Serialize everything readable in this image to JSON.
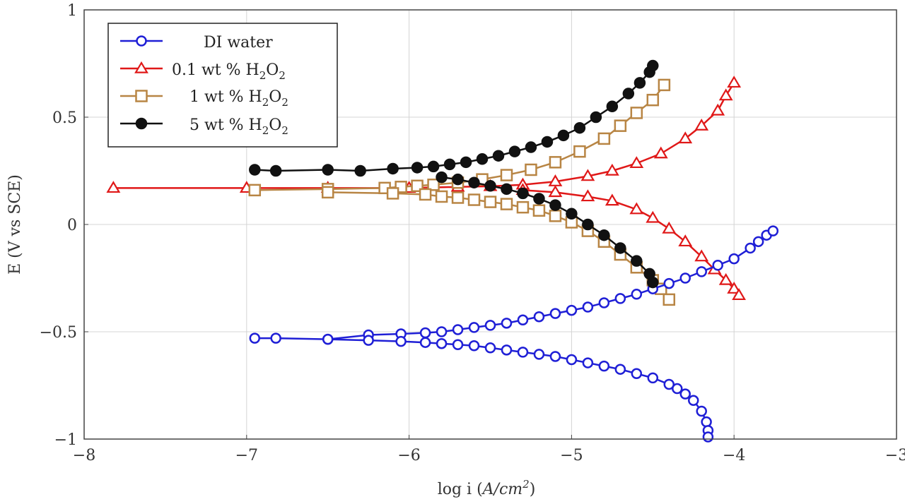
{
  "chart_data": {
    "type": "scatter",
    "xlabel_main": "log i (",
    "xlabel_unit": "A/cm",
    "xlabel_exp": "2",
    "xlabel_close": ")",
    "ylabel": "E (V vs SCE)",
    "xlim": [
      -8,
      -3
    ],
    "ylim": [
      -1,
      1
    ],
    "xticks": [
      -8,
      -7,
      -6,
      -5,
      -4,
      -3
    ],
    "yticks": [
      -1,
      -0.5,
      0,
      0.5,
      1
    ],
    "xtick_labels": [
      "−8",
      "−7",
      "−6",
      "−5",
      "−4",
      "−3"
    ],
    "ytick_labels": [
      "−1",
      "−0.5",
      "0",
      "0.5",
      "1"
    ],
    "grid": true,
    "legend_position": "top-left",
    "series": [
      {
        "name": "DI water",
        "legend_main": "DI water",
        "color": "#1f1fd6",
        "marker": "circle",
        "x": [
          -6.95,
          -6.82,
          -6.5,
          -6.25,
          -6.05,
          -5.9,
          -5.8,
          -5.7,
          -5.6,
          -5.5,
          -5.4,
          -5.3,
          -5.2,
          -5.1,
          -5.0,
          -4.9,
          -4.8,
          -4.7,
          -4.6,
          -4.5,
          -4.4,
          -4.3,
          -4.2,
          -4.1,
          -4.0,
          -3.9,
          -3.85,
          -3.8,
          -3.76,
          -6.5,
          -6.25,
          -6.05,
          -5.9,
          -5.8,
          -5.7,
          -5.6,
          -5.5,
          -5.4,
          -5.3,
          -5.2,
          -5.1,
          -5.0,
          -4.9,
          -4.8,
          -4.7,
          -4.6,
          -4.5,
          -4.4,
          -4.35,
          -4.3,
          -4.25,
          -4.2,
          -4.17,
          -4.16,
          -4.16
        ],
        "y": [
          -0.53,
          -0.53,
          -0.535,
          -0.515,
          -0.51,
          -0.505,
          -0.5,
          -0.49,
          -0.48,
          -0.47,
          -0.46,
          -0.445,
          -0.43,
          -0.415,
          -0.4,
          -0.385,
          -0.365,
          -0.345,
          -0.325,
          -0.3,
          -0.275,
          -0.25,
          -0.22,
          -0.19,
          -0.16,
          -0.11,
          -0.08,
          -0.05,
          -0.03,
          -0.535,
          -0.54,
          -0.545,
          -0.55,
          -0.555,
          -0.56,
          -0.565,
          -0.575,
          -0.585,
          -0.595,
          -0.605,
          -0.615,
          -0.63,
          -0.645,
          -0.66,
          -0.675,
          -0.695,
          -0.715,
          -0.745,
          -0.765,
          -0.79,
          -0.82,
          -0.87,
          -0.92,
          -0.96,
          -0.99
        ]
      },
      {
        "name": "0.1 wt % H2O2",
        "legend_main": "0.1 wt % H",
        "legend_sub1": "2",
        "legend_mid": "O",
        "legend_sub2": "2",
        "color": "#e01818",
        "marker": "triangle",
        "x": [
          -7.82,
          -7.0,
          -6.5,
          -6.0,
          -5.7,
          -5.5,
          -5.3,
          -5.1,
          -4.9,
          -4.75,
          -4.6,
          -4.45,
          -4.3,
          -4.2,
          -4.1,
          -4.05,
          -4.0,
          -5.3,
          -5.1,
          -4.9,
          -4.75,
          -4.6,
          -4.5,
          -4.4,
          -4.3,
          -4.2,
          -4.12,
          -4.05,
          -4.0,
          -3.97
        ],
        "y": [
          0.17,
          0.17,
          0.17,
          0.17,
          0.175,
          0.178,
          0.185,
          0.2,
          0.225,
          0.25,
          0.285,
          0.33,
          0.4,
          0.46,
          0.53,
          0.6,
          0.66,
          0.16,
          0.15,
          0.13,
          0.11,
          0.07,
          0.03,
          -0.02,
          -0.08,
          -0.15,
          -0.21,
          -0.26,
          -0.3,
          -0.33
        ]
      },
      {
        "name": "1 wt % H2O2",
        "legend_main": "1 wt % H",
        "legend_sub1": "2",
        "legend_mid": "O",
        "legend_sub2": "2",
        "color": "#b88544",
        "marker": "square",
        "x": [
          -6.95,
          -6.5,
          -6.15,
          -6.05,
          -5.95,
          -5.85,
          -5.7,
          -5.55,
          -5.4,
          -5.25,
          -5.1,
          -4.95,
          -4.8,
          -4.7,
          -4.6,
          -4.5,
          -4.43,
          -6.5,
          -6.1,
          -5.9,
          -5.8,
          -5.7,
          -5.6,
          -5.5,
          -5.4,
          -5.3,
          -5.2,
          -5.1,
          -5.0,
          -4.9,
          -4.8,
          -4.7,
          -4.6,
          -4.5,
          -4.45,
          -4.4
        ],
        "y": [
          0.16,
          0.165,
          0.17,
          0.175,
          0.18,
          0.185,
          0.195,
          0.21,
          0.23,
          0.255,
          0.29,
          0.34,
          0.4,
          0.46,
          0.52,
          0.58,
          0.65,
          0.15,
          0.145,
          0.14,
          0.13,
          0.125,
          0.115,
          0.105,
          0.095,
          0.08,
          0.065,
          0.04,
          0.01,
          -0.03,
          -0.08,
          -0.14,
          -0.2,
          -0.26,
          -0.3,
          -0.35
        ]
      },
      {
        "name": "5 wt % H2O2",
        "legend_main": "5 wt % H",
        "legend_sub1": "2",
        "legend_mid": "O",
        "legend_sub2": "2",
        "color": "#111111",
        "marker": "filled-circle",
        "x": [
          -6.95,
          -6.82,
          -6.5,
          -6.3,
          -6.1,
          -5.95,
          -5.85,
          -5.75,
          -5.65,
          -5.55,
          -5.45,
          -5.35,
          -5.25,
          -5.15,
          -5.05,
          -4.95,
          -4.85,
          -4.75,
          -4.65,
          -4.58,
          -4.52,
          -4.5,
          -5.8,
          -5.7,
          -5.6,
          -5.5,
          -5.4,
          -5.3,
          -5.2,
          -5.1,
          -5.0,
          -4.9,
          -4.8,
          -4.7,
          -4.6,
          -4.52,
          -4.5
        ],
        "y": [
          0.255,
          0.25,
          0.255,
          0.25,
          0.26,
          0.265,
          0.27,
          0.28,
          0.29,
          0.305,
          0.32,
          0.34,
          0.36,
          0.385,
          0.415,
          0.45,
          0.5,
          0.55,
          0.61,
          0.66,
          0.71,
          0.74,
          0.22,
          0.21,
          0.195,
          0.18,
          0.165,
          0.145,
          0.12,
          0.09,
          0.05,
          0.0,
          -0.05,
          -0.11,
          -0.17,
          -0.23,
          -0.27
        ]
      }
    ]
  }
}
